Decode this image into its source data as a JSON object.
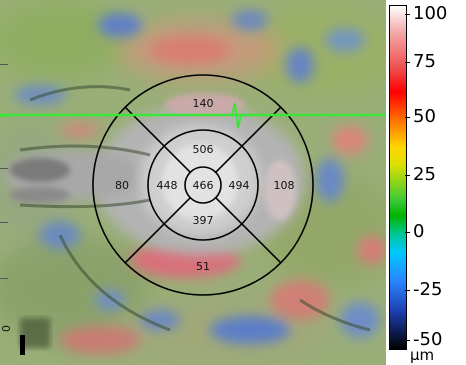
{
  "map": {
    "sectors": {
      "center": "466",
      "inner_superior": "506",
      "inner_nasal_left": "448",
      "inner_temporal_right": "494",
      "inner_inferior": "397",
      "outer_superior": "140",
      "outer_left": "80",
      "outer_right": "108",
      "outer_inferior": "51"
    },
    "scan_line_color": "#39e639",
    "grid_color": "#000000"
  },
  "colorbar": {
    "labels": [
      "100",
      "75",
      "50",
      "25",
      "0",
      "-25",
      "-50"
    ],
    "unit": "µm"
  },
  "left_edge_label": "0"
}
